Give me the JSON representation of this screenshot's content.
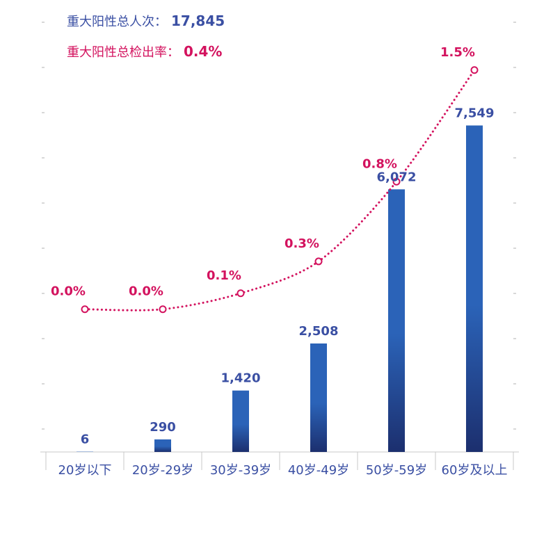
{
  "summary": {
    "total_label": "重大阳性总人次：",
    "total_value": "17,845",
    "rate_label": "重大阳性总检出率：",
    "rate_value": "0.4%"
  },
  "colors": {
    "bar_top": "#2b63b8",
    "bar_bottom": "#1c2f6e",
    "line": "#d3125e",
    "count_label": "#3a4fa3",
    "rate_label": "#d3125e",
    "axis": "#c8c8c8",
    "tick_label": "#3a4fa3"
  },
  "chart_data": {
    "type": "bar",
    "categories": [
      "20岁以下",
      "20岁-29岁",
      "30岁-39岁",
      "40岁-49岁",
      "50岁-59岁",
      "60岁及以上"
    ],
    "series": [
      {
        "type": "bar",
        "values": [
          6,
          290,
          1420,
          2508,
          6072,
          7549
        ],
        "labels": [
          "6",
          "290",
          "1,420",
          "2,508",
          "6,072",
          "7,549"
        ]
      },
      {
        "type": "line",
        "values": [
          0.0,
          0.0,
          0.1,
          0.3,
          0.8,
          1.5
        ],
        "labels": [
          "0.0%",
          "0.0%",
          "0.1%",
          "0.3%",
          "0.8%",
          "1.5%"
        ]
      }
    ],
    "ylim_left": [
      0,
      10000
    ],
    "ylim_right": [
      -1,
      1.8
    ],
    "grid": false,
    "legend": "none"
  }
}
